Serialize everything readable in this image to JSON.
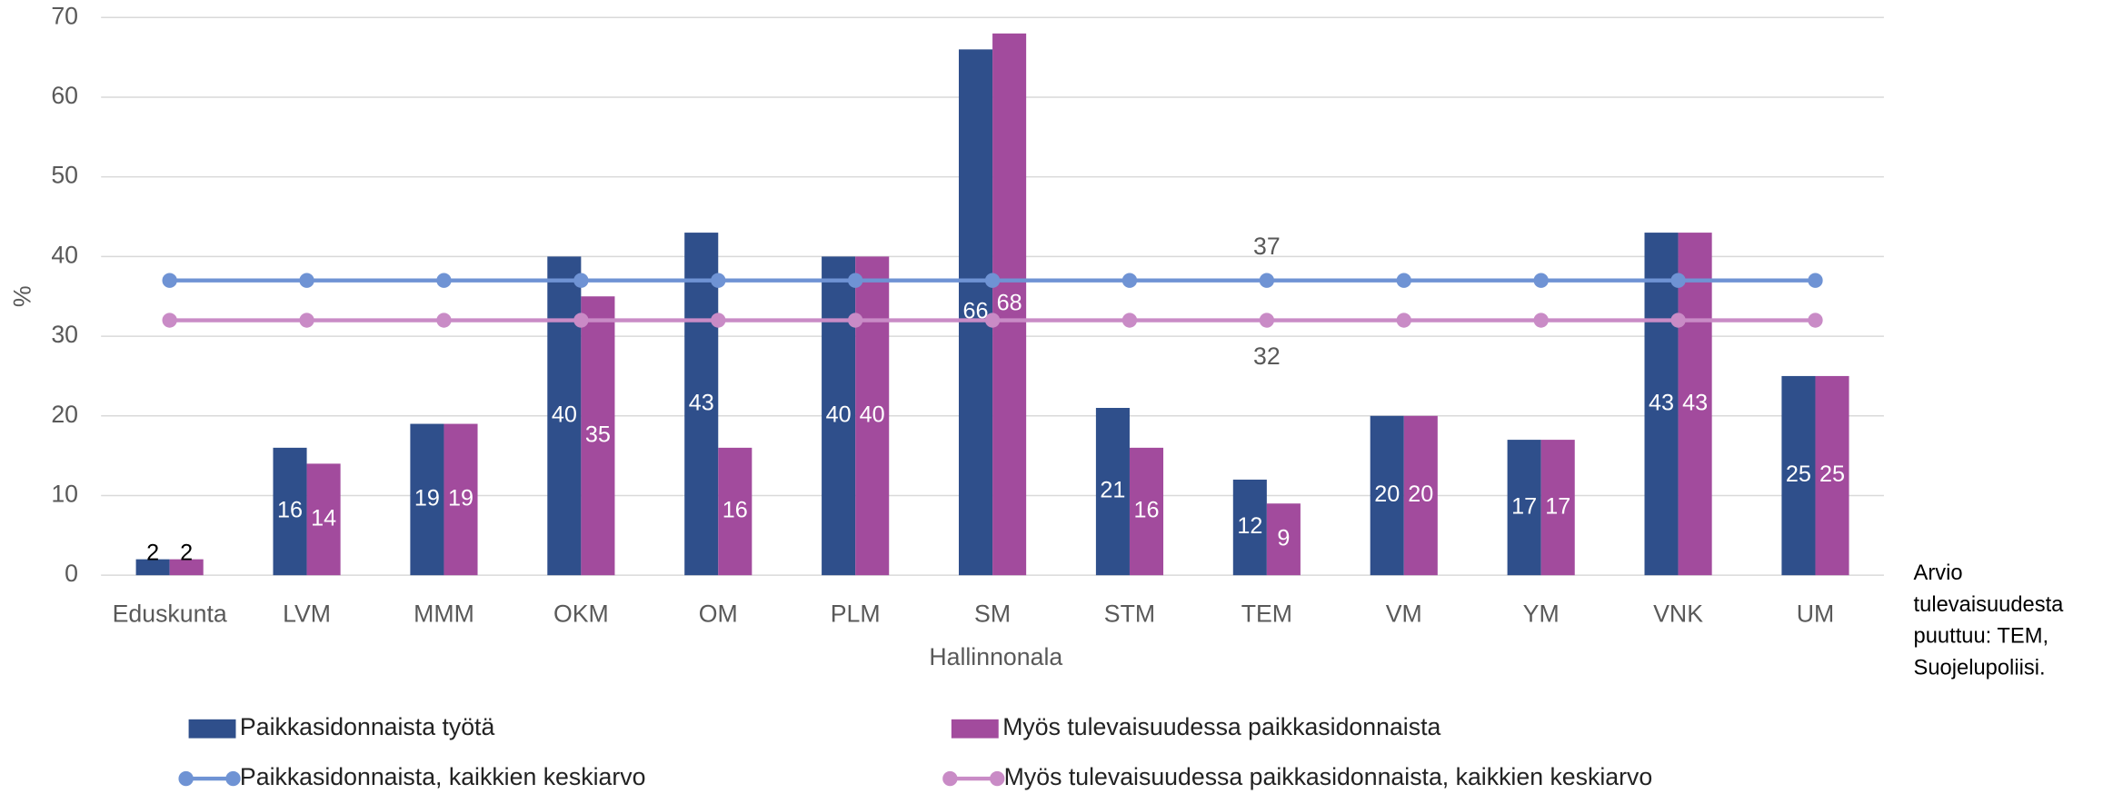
{
  "chart_data": {
    "type": "bar",
    "y_label": "%",
    "x_label": "Hallinnonala",
    "categories": [
      "Eduskunta",
      "LVM",
      "MMM",
      "OKM",
      "OM",
      "PLM",
      "SM",
      "STM",
      "TEM",
      "VM",
      "YM",
      "VNK",
      "UM"
    ],
    "series": [
      {
        "name": "Paikkasidonnaista työtä",
        "color": "#2f4f8b",
        "values": [
          2,
          16,
          19,
          40,
          43,
          40,
          66,
          21,
          12,
          20,
          17,
          43,
          25
        ]
      },
      {
        "name": "Myös tulevaisuudessa paikkasidonnaista",
        "color": "#a24b9d",
        "values": [
          2,
          14,
          19,
          35,
          16,
          40,
          68,
          16,
          9,
          20,
          17,
          43,
          25
        ]
      },
      {
        "name": "Paikkasidonnaista, kaikkien keskiarvo",
        "type": "line",
        "color": "#6f93d4",
        "values": [
          37,
          37,
          37,
          37,
          37,
          37,
          37,
          37,
          37,
          37,
          37,
          37,
          37
        ],
        "value_labels": [
          null,
          null,
          null,
          null,
          null,
          null,
          null,
          null,
          "37",
          null,
          null,
          null,
          null
        ]
      },
      {
        "name": "Myös tulevaisuudessa paikkasidonnaista, kaikkien keskiarvo",
        "type": "line",
        "color": "#c98bc6",
        "values": [
          32,
          32,
          32,
          32,
          32,
          32,
          32,
          32,
          32,
          32,
          32,
          32,
          32
        ],
        "value_labels": [
          null,
          null,
          null,
          null,
          null,
          null,
          null,
          null,
          "32",
          null,
          null,
          null,
          null
        ]
      }
    ],
    "ylim": [
      0,
      70
    ],
    "yticks": [
      0,
      10,
      20,
      30,
      40,
      50,
      60,
      70
    ],
    "grid": true,
    "legend": "bottom",
    "note": [
      "Arvio",
      "tulevaisuudesta",
      "puuttuu:  TEM,",
      "Suojelupoliisi."
    ]
  }
}
